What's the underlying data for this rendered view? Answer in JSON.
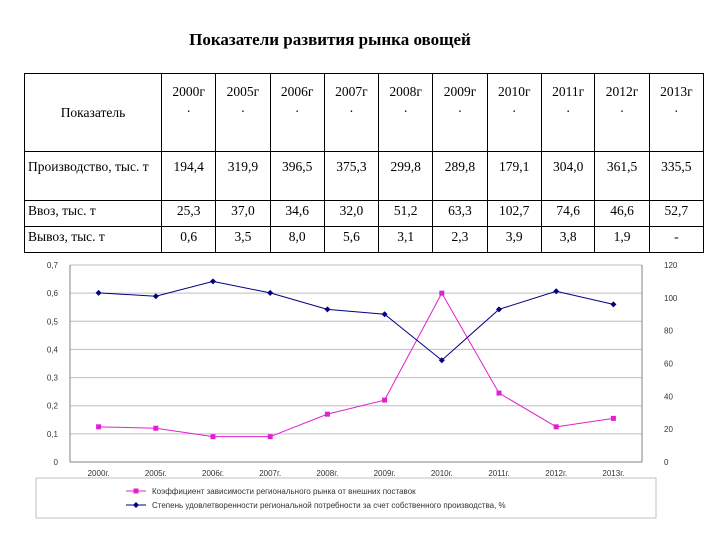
{
  "title": "Показатели развития рынка овощей",
  "table": {
    "header_label": "Показатель",
    "years": [
      "2000г.",
      "2005г.",
      "2006г.",
      "2007г.",
      "2008г.",
      "2009г.",
      "2010г.",
      "2011г.",
      "2012г.",
      "2013г."
    ],
    "rows": [
      {
        "label": "Производство, тыс. т",
        "values": [
          "194,4",
          "319,9",
          "396,5",
          "375,3",
          "299,8",
          "289,8",
          "179,1",
          "304,0",
          "361,5",
          "335,5"
        ]
      },
      {
        "label": "Ввоз, тыс. т",
        "values": [
          "25,3",
          "37,0",
          "34,6",
          "32,0",
          "51,2",
          "63,3",
          "102,7",
          "74,6",
          "46,6",
          "52,7"
        ]
      },
      {
        "label": "Вывоз, тыс. т",
        "values": [
          "0,6",
          "3,5",
          "8,0",
          "5,6",
          "3,1",
          "2,3",
          "3,9",
          "3,8",
          "1,9",
          "-"
        ]
      }
    ]
  },
  "chart_data": {
    "type": "line",
    "title": "",
    "categories": [
      "2000г.",
      "2005г.",
      "2006г.",
      "2007г.",
      "2008г.",
      "2009г.",
      "2010г.",
      "2011г.",
      "2012г.",
      "2013г."
    ],
    "left_axis": {
      "ylim": [
        0,
        0.7
      ],
      "ticks": [
        "0",
        "0,1",
        "0,2",
        "0,3",
        "0,4",
        "0,5",
        "0,6",
        "0,7"
      ]
    },
    "right_axis": {
      "ylim": [
        0,
        120
      ],
      "ticks": [
        "0",
        "20",
        "40",
        "60",
        "80",
        "100",
        "120"
      ]
    },
    "grid": true,
    "legend_position": "bottom",
    "series": [
      {
        "name": "Коэффициент зависимости регионального рынка от внешних поставок",
        "axis": "left",
        "color": "#e020d0",
        "marker": "square",
        "values": [
          0.125,
          0.12,
          0.09,
          0.09,
          0.17,
          0.22,
          0.6,
          0.245,
          0.125,
          0.155
        ]
      },
      {
        "name": "Степень удовлетворенности региональной потребности за счет собственного производства, %",
        "axis": "right",
        "color": "#000080",
        "marker": "diamond",
        "values": [
          103,
          101,
          110,
          103,
          93,
          90,
          62,
          93,
          104,
          96
        ]
      }
    ]
  }
}
